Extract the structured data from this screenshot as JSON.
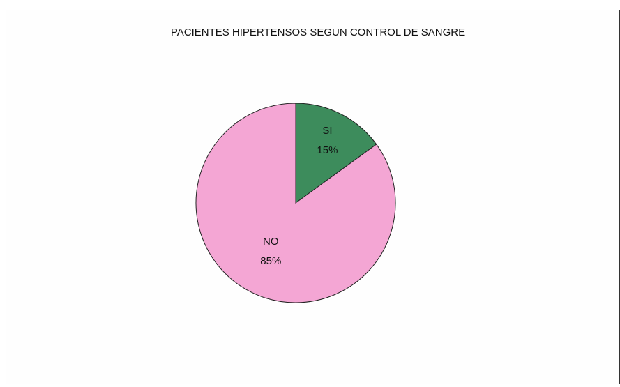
{
  "chart_data": {
    "type": "pie",
    "title": "PACIENTES HIPERTENSOS SEGUN CONTROL DE SANGRE",
    "categories": [
      "SI",
      "NO"
    ],
    "values": [
      15,
      85
    ],
    "value_labels": [
      "15%",
      "85%"
    ],
    "colors": [
      "#3d8c5c",
      "#f4a6d4"
    ]
  }
}
